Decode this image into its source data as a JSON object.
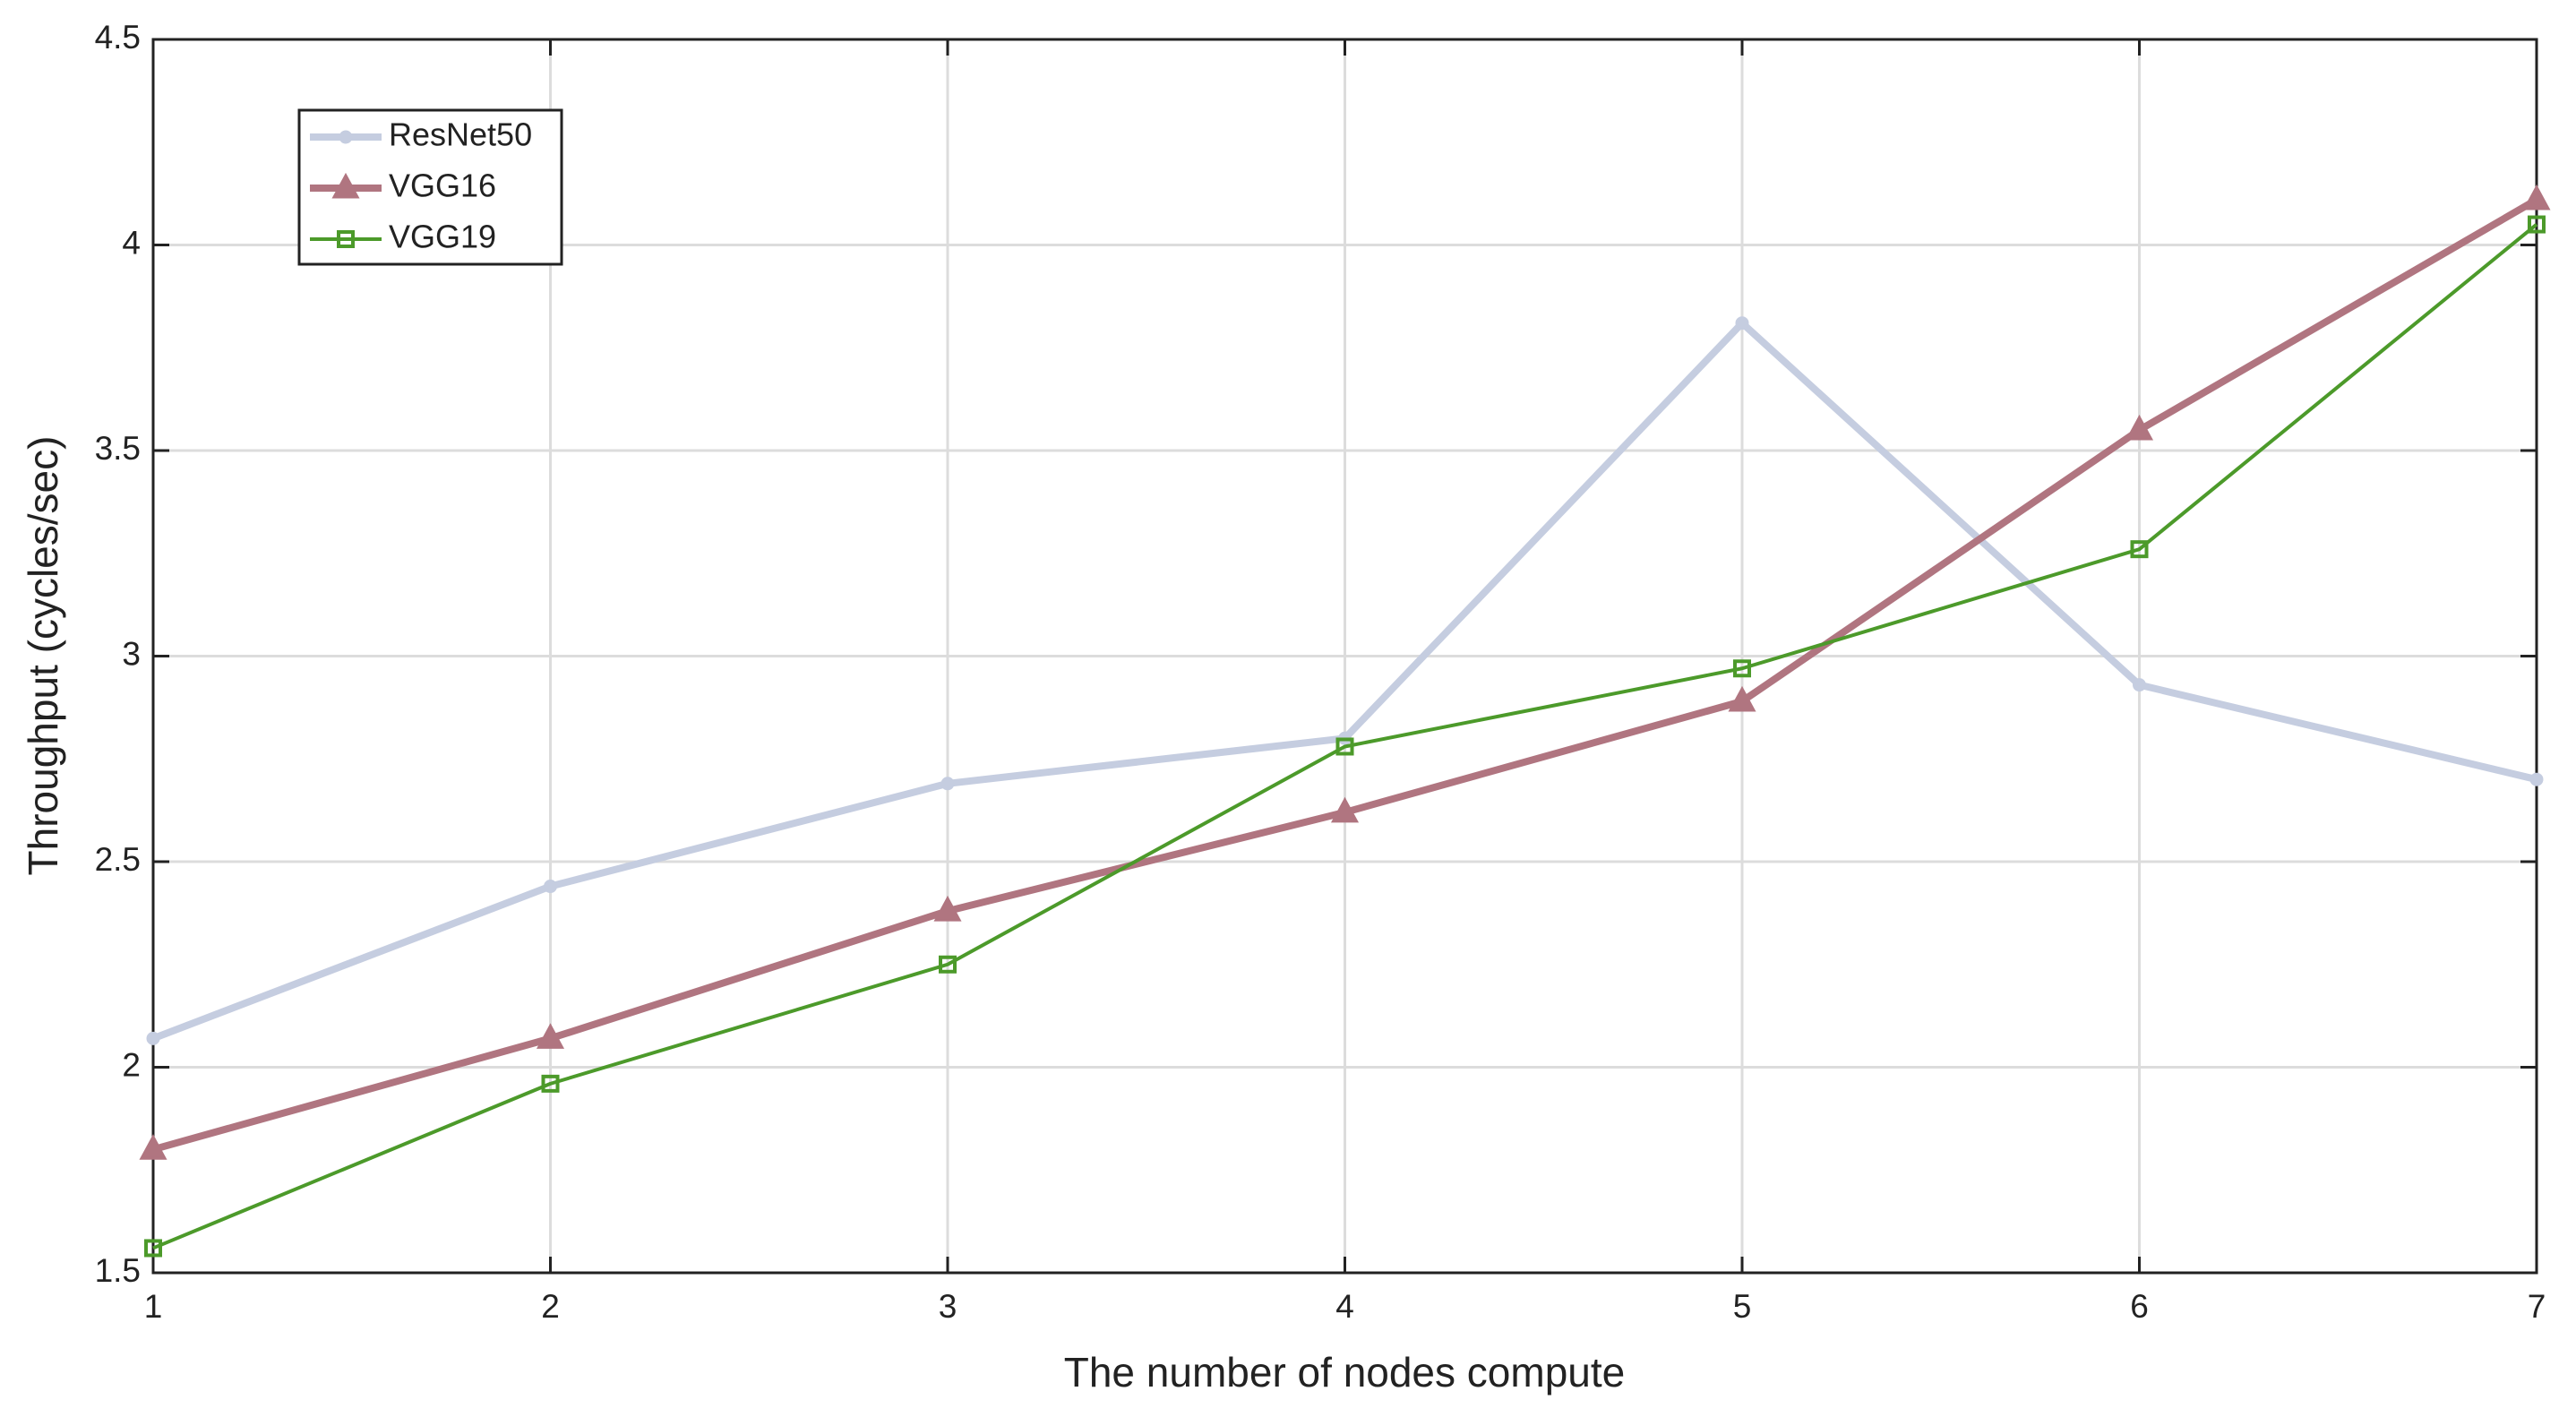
{
  "chart_data": {
    "type": "line",
    "xlabel": "The number of nodes compute",
    "ylabel": "Throughput (cycles/sec)",
    "x": [
      1,
      2,
      3,
      4,
      5,
      6,
      7
    ],
    "xlim": [
      1,
      7
    ],
    "xticks": [
      1,
      2,
      3,
      4,
      5,
      6,
      7
    ],
    "ylim": [
      1.5,
      4.5
    ],
    "yticks": [
      1.5,
      2,
      2.5,
      3,
      3.5,
      4,
      4.5
    ],
    "grid": true,
    "legend": "upper left",
    "series": [
      {
        "name": "ResNet50",
        "color": "#c5cde0",
        "marker": "circle",
        "values": [
          2.07,
          2.44,
          2.69,
          2.8,
          3.81,
          2.93,
          2.7
        ]
      },
      {
        "name": "VGG16",
        "color": "#b07580",
        "marker": "triangle",
        "values": [
          1.8,
          2.07,
          2.38,
          2.62,
          2.89,
          3.55,
          4.11
        ]
      },
      {
        "name": "VGG19",
        "color": "#4c9a2a",
        "marker": "square",
        "values": [
          1.56,
          1.96,
          2.25,
          2.78,
          2.97,
          3.26,
          4.05
        ]
      }
    ]
  }
}
